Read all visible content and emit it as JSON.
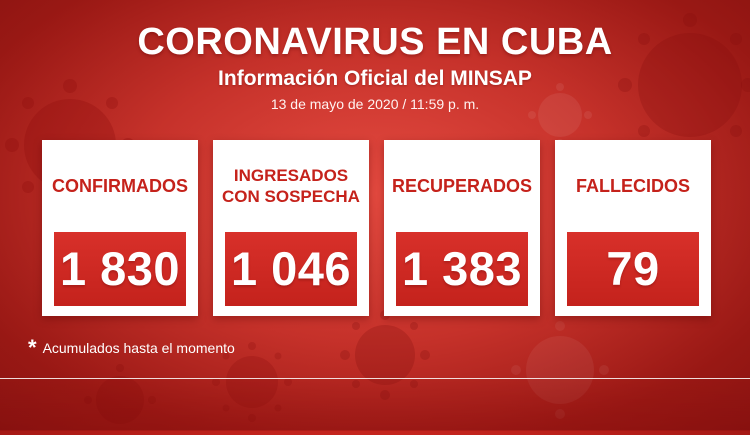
{
  "header": {
    "title": "CORONAVIRUS EN CUBA",
    "subtitle": "Información Oficial del MINSAP",
    "date": "13 de mayo de 2020 / 11:59 p. m."
  },
  "cards": [
    {
      "label": "CONFIRMADOS",
      "value": "1 830",
      "marker": "*"
    },
    {
      "label": "INGRESADOS\nCON SOSPECHA",
      "value": "1 046"
    },
    {
      "label": "RECUPERADOS",
      "value": "1 383",
      "marker": "*"
    },
    {
      "label": "FALLECIDOS",
      "value": "79",
      "marker": "*"
    }
  ],
  "footnote": {
    "marker": "*",
    "text": "Acumulados hasta el momento"
  },
  "colors": {
    "background": "#cf2a22",
    "accent_red": "#c5221b",
    "card_bg": "#ffffff",
    "text_white": "#ffffff"
  },
  "decor": {
    "icon": "virus-icon"
  }
}
